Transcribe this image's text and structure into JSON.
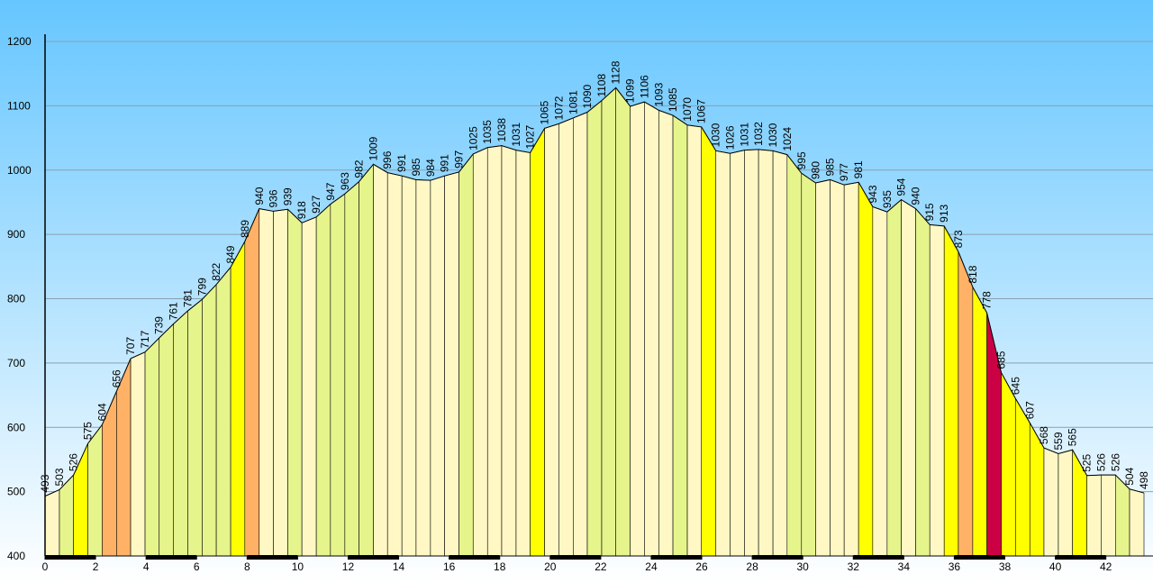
{
  "chart_data": {
    "type": "elevation-profile",
    "x": [
      0,
      0.57,
      1.13,
      1.7,
      2.26,
      2.83,
      3.39,
      3.96,
      4.52,
      5.09,
      5.65,
      6.22,
      6.78,
      7.35,
      7.91,
      8.48,
      9.04,
      9.61,
      10.17,
      10.74,
      11.3,
      11.87,
      12.43,
      13,
      13.56,
      14.13,
      14.69,
      15.26,
      15.82,
      16.39,
      16.95,
      17.52,
      18.08,
      18.65,
      19.21,
      19.78,
      20.34,
      20.91,
      21.47,
      22.04,
      22.6,
      23.17,
      23.73,
      24.3,
      24.86,
      25.43,
      25.99,
      26.56,
      27.12,
      27.69,
      28.25,
      28.82,
      29.38,
      29.95,
      30.51,
      31.08,
      31.64,
      32.21,
      32.77,
      33.34,
      33.9,
      34.47,
      35.03,
      35.6,
      36.16,
      36.73,
      37.29,
      37.86,
      38.42,
      38.99,
      39.55,
      40.12,
      40.68,
      41.25,
      41.81,
      42.38,
      42.94,
      43.51
    ],
    "values": [
      493,
      503,
      526,
      575,
      604,
      656,
      707,
      717,
      739,
      761,
      781,
      799,
      822,
      849,
      889,
      940,
      936,
      939,
      918,
      927,
      947,
      963,
      982,
      1009,
      996,
      991,
      985,
      984,
      991,
      997,
      1025,
      1035,
      1038,
      1031,
      1027,
      1065,
      1072,
      1081,
      1090,
      1108,
      1128,
      1099,
      1106,
      1093,
      1085,
      1070,
      1067,
      1030,
      1026,
      1031,
      1032,
      1030,
      1024,
      995,
      980,
      985,
      977,
      981,
      943,
      935,
      954,
      940,
      915,
      913,
      873,
      818,
      778,
      685,
      645,
      607,
      568,
      559,
      565,
      525,
      526,
      526,
      504,
      498
    ],
    "segment_colors": [
      "#fff8c4",
      "#e6f48c",
      "#ffff00",
      "#e6f48c",
      "#ffb266",
      "#ffb266",
      "#fff8c4",
      "#e6f48c",
      "#e6f48c",
      "#e6f48c",
      "#e6f48c",
      "#e6f48c",
      "#e6f48c",
      "#ffff00",
      "#ffb266",
      "#fff8c4",
      "#fff8c4",
      "#e6f48c",
      "#fff8c4",
      "#e6f48c",
      "#e6f48c",
      "#e6f48c",
      "#e6f48c",
      "#fff8c4",
      "#fff8c4",
      "#fff8c4",
      "#fff8c4",
      "#fff8c4",
      "#fff8c4",
      "#e6f48c",
      "#fff8c4",
      "#fff8c4",
      "#fff8c4",
      "#fff8c4",
      "#ffff00",
      "#fff8c4",
      "#fff8c4",
      "#fff8c4",
      "#e6f48c",
      "#e6f48c",
      "#e6f48c",
      "#fff8c4",
      "#fff8c4",
      "#fff8c4",
      "#e6f48c",
      "#fff8c4",
      "#ffff00",
      "#fff8c4",
      "#fff8c4",
      "#fff8c4",
      "#fff8c4",
      "#fff8c4",
      "#e6f48c",
      "#e6f48c",
      "#fff8c4",
      "#fff8c4",
      "#fff8c4",
      "#ffff00",
      "#fff8c4",
      "#e6f48c",
      "#fff8c4",
      "#e6f48c",
      "#fff8c4",
      "#ffff00",
      "#ffb266",
      "#ffff00",
      "#cc0044",
      "#ffff00",
      "#ffff00",
      "#ffff00",
      "#fff8c4",
      "#fff8c4",
      "#ffff00",
      "#fff8c4",
      "#fff8c4",
      "#e6f48c",
      "#fff8c4"
    ],
    "xlim": [
      0,
      43.51
    ],
    "ylim": [
      400,
      1200
    ],
    "xticks": [
      0,
      2,
      4,
      6,
      8,
      10,
      12,
      14,
      16,
      18,
      20,
      22,
      24,
      26,
      28,
      30,
      32,
      34,
      36,
      38,
      40,
      42
    ],
    "yticks": [
      400,
      500,
      600,
      700,
      800,
      900,
      1000,
      1100,
      1200
    ],
    "grid": true
  }
}
